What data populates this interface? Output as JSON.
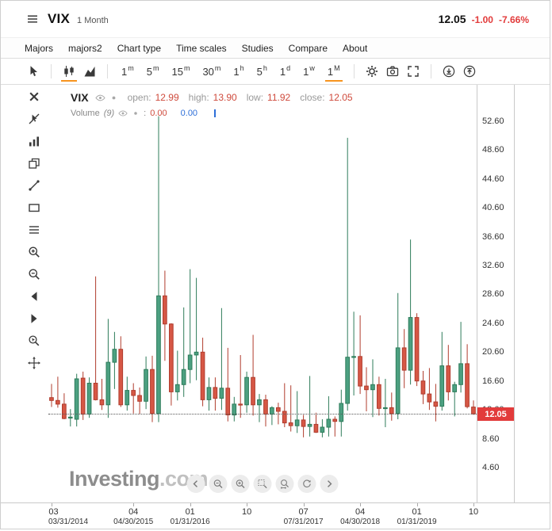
{
  "header": {
    "symbol": "VIX",
    "interval": "1 Month",
    "price": "12.05",
    "change": "-1.00",
    "change_pct": "-7.66%"
  },
  "menu": {
    "items": [
      "Majors",
      "majors2",
      "Chart type",
      "Time scales",
      "Studies",
      "Compare",
      "About"
    ]
  },
  "toolbar": {
    "pointer_tool": "pointer",
    "chart_types": [
      "candlestick-chart",
      "area-chart"
    ],
    "active_chart_type": "candlestick-chart",
    "timeframes": [
      "1m",
      "5m",
      "15m",
      "30m",
      "1h",
      "5h",
      "1d",
      "1w",
      "1M"
    ],
    "active_timeframe": "1M",
    "right_tools": [
      "settings",
      "screenshot",
      "fullscreen"
    ],
    "share_tools": [
      "download-chart",
      "upload-chart"
    ]
  },
  "side_tools": [
    "close",
    "cursor-disabled",
    "indicators",
    "clone-layers",
    "trendline",
    "rectangle-tool",
    "parallel-lines",
    "zoom-in",
    "zoom-out",
    "step-back",
    "step-forward",
    "zoom-select",
    "move-crosshair"
  ],
  "chart_nav": [
    "chevron-left",
    "zoom-out",
    "zoom-in",
    "zoom-area",
    "zoom-x",
    "zoom-reset",
    "chevron-right"
  ],
  "legend": {
    "symbol": "VIX",
    "open_label": "open:",
    "open_value": "12.99",
    "high_label": "high:",
    "high_value": "13.90",
    "low_label": "low:",
    "low_value": "11.92",
    "close_label": "close:",
    "close_value": "12.05",
    "volume_label": "Volume",
    "volume_param": "(9)",
    "volume_sep": ":",
    "volume_value": "0.00",
    "volume_value2": "0.00"
  },
  "watermark": {
    "brand": "Investing",
    "suffix": ".com"
  },
  "price_tag": {
    "value": "12.05"
  },
  "y_axis": {
    "ticks": [
      "52.60",
      "48.60",
      "44.60",
      "40.60",
      "36.60",
      "32.60",
      "28.60",
      "24.60",
      "20.60",
      "16.60",
      "12.60",
      "8.60",
      "4.60"
    ]
  },
  "x_axis": {
    "ticks": [
      {
        "label": "03",
        "date": "03/31/2014",
        "index": 0
      },
      {
        "label": "04",
        "date": "04/30/2015",
        "index": 13
      },
      {
        "label": "01",
        "date": "01/31/2016",
        "index": 22
      },
      {
        "label": "10",
        "date": "",
        "index": 31
      },
      {
        "label": "07",
        "date": "07/31/2017",
        "index": 40
      },
      {
        "label": "04",
        "date": "04/30/2018",
        "index": 49
      },
      {
        "label": "01",
        "date": "01/31/2019",
        "index": 58
      },
      {
        "label": "10",
        "date": "",
        "index": 67
      }
    ]
  },
  "colors": {
    "accent": "#f7941e",
    "negative": "#e23b3b",
    "up_fill": "#4ca081",
    "up_stroke": "#2e7c5a",
    "down_fill": "#d65745",
    "down_stroke": "#b03c2d",
    "value_red": "#cf4a3c",
    "value_blue": "#2e6fd8",
    "tag_bg": "#e23b3b",
    "price_line": "#555555"
  },
  "chart_data": {
    "type": "candlestick",
    "title": "VIX 1 Month",
    "x_unit": "month",
    "ylim": [
      4.6,
      56.6
    ],
    "y_ticks": [
      52.6,
      48.6,
      44.6,
      40.6,
      36.6,
      32.6,
      28.6,
      24.6,
      20.6,
      16.6,
      12.6,
      8.6,
      4.6
    ],
    "last_price": 12.05,
    "columns": [
      "month",
      "open",
      "high",
      "low",
      "close"
    ],
    "ohlc": [
      [
        "2014-03",
        14.3,
        16.2,
        13.0,
        13.9
      ],
      [
        "2014-04",
        13.9,
        17.2,
        12.9,
        13.4
      ],
      [
        "2014-05",
        13.4,
        14.9,
        11.3,
        11.4
      ],
      [
        "2014-06",
        11.5,
        12.7,
        10.3,
        11.6
      ],
      [
        "2014-07",
        11.3,
        17.6,
        10.3,
        16.9
      ],
      [
        "2014-08",
        17.0,
        17.9,
        11.2,
        12.0
      ],
      [
        "2014-09",
        12.0,
        17.1,
        11.5,
        16.3
      ],
      [
        "2014-10",
        16.3,
        31.1,
        13.9,
        14.0
      ],
      [
        "2014-11",
        14.0,
        16.9,
        12.6,
        13.3
      ],
      [
        "2014-12",
        13.3,
        25.2,
        11.5,
        19.2
      ],
      [
        "2015-01",
        19.2,
        23.4,
        15.5,
        21.0
      ],
      [
        "2015-02",
        21.0,
        22.8,
        13.0,
        13.3
      ],
      [
        "2015-03",
        13.3,
        17.2,
        12.5,
        15.3
      ],
      [
        "2015-04",
        15.3,
        16.3,
        12.1,
        14.6
      ],
      [
        "2015-05",
        14.6,
        15.7,
        12.0,
        13.8
      ],
      [
        "2015-06",
        13.8,
        20.0,
        12.7,
        18.2
      ],
      [
        "2015-07",
        18.2,
        20.1,
        10.9,
        12.1
      ],
      [
        "2015-08",
        12.1,
        53.3,
        10.9,
        28.4
      ],
      [
        "2015-09",
        28.4,
        31.9,
        19.4,
        24.5
      ],
      [
        "2015-10",
        24.5,
        24.6,
        13.2,
        15.1
      ],
      [
        "2015-11",
        15.1,
        20.8,
        13.9,
        16.1
      ],
      [
        "2015-12",
        16.1,
        26.8,
        14.4,
        18.2
      ],
      [
        "2016-01",
        18.2,
        32.1,
        16.3,
        20.2
      ],
      [
        "2016-02",
        20.2,
        30.9,
        16.7,
        20.6
      ],
      [
        "2016-03",
        20.6,
        22.6,
        13.1,
        14.0
      ],
      [
        "2016-04",
        14.0,
        17.1,
        12.5,
        15.7
      ],
      [
        "2016-05",
        15.7,
        17.1,
        12.5,
        14.2
      ],
      [
        "2016-06",
        14.2,
        26.7,
        12.6,
        15.6
      ],
      [
        "2016-07",
        15.6,
        21.2,
        11.0,
        11.9
      ],
      [
        "2016-08",
        11.9,
        14.4,
        11.0,
        13.4
      ],
      [
        "2016-09",
        13.4,
        20.2,
        11.5,
        13.3
      ],
      [
        "2016-10",
        13.3,
        17.9,
        12.2,
        17.1
      ],
      [
        "2016-11",
        17.1,
        23.0,
        11.8,
        13.3
      ],
      [
        "2016-12",
        13.3,
        14.8,
        10.9,
        14.0
      ],
      [
        "2017-01",
        14.0,
        14.7,
        10.3,
        12.0
      ],
      [
        "2017-02",
        12.0,
        13.1,
        10.5,
        12.9
      ],
      [
        "2017-03",
        12.9,
        13.6,
        10.6,
        12.4
      ],
      [
        "2017-04",
        12.4,
        16.3,
        10.2,
        10.8
      ],
      [
        "2017-05",
        10.8,
        16.0,
        9.6,
        10.4
      ],
      [
        "2017-06",
        10.4,
        15.2,
        9.4,
        11.2
      ],
      [
        "2017-07",
        11.2,
        11.9,
        8.8,
        10.3
      ],
      [
        "2017-08",
        10.3,
        17.3,
        8.9,
        10.6
      ],
      [
        "2017-09",
        10.6,
        12.2,
        9.4,
        9.5
      ],
      [
        "2017-10",
        9.5,
        11.3,
        8.8,
        10.2
      ],
      [
        "2017-11",
        10.2,
        14.5,
        8.9,
        11.3
      ],
      [
        "2017-12",
        11.3,
        11.7,
        8.9,
        11.0
      ],
      [
        "2018-01",
        11.0,
        15.4,
        8.9,
        13.5
      ],
      [
        "2018-02",
        13.5,
        50.3,
        12.5,
        19.9
      ],
      [
        "2018-03",
        19.9,
        26.2,
        14.6,
        20.0
      ],
      [
        "2018-04",
        20.0,
        25.7,
        14.8,
        15.9
      ],
      [
        "2018-05",
        15.9,
        18.5,
        12.4,
        15.4
      ],
      [
        "2018-06",
        15.4,
        19.6,
        11.6,
        16.1
      ],
      [
        "2018-07",
        16.1,
        17.2,
        11.8,
        12.8
      ],
      [
        "2018-08",
        12.8,
        16.9,
        10.2,
        12.9
      ],
      [
        "2018-09",
        12.9,
        15.0,
        11.1,
        12.1
      ],
      [
        "2018-10",
        12.1,
        28.8,
        11.3,
        21.2
      ],
      [
        "2018-11",
        21.2,
        23.8,
        15.6,
        18.1
      ],
      [
        "2018-12",
        18.1,
        36.2,
        16.1,
        25.4
      ],
      [
        "2019-01",
        25.4,
        26.0,
        15.9,
        16.6
      ],
      [
        "2019-02",
        16.6,
        18.0,
        13.4,
        14.8
      ],
      [
        "2019-03",
        14.8,
        18.4,
        12.6,
        13.7
      ],
      [
        "2019-04",
        13.7,
        16.2,
        11.0,
        13.1
      ],
      [
        "2019-05",
        13.1,
        23.4,
        12.5,
        18.7
      ],
      [
        "2019-06",
        18.7,
        21.6,
        13.9,
        15.1
      ],
      [
        "2019-07",
        15.1,
        16.5,
        11.7,
        16.1
      ],
      [
        "2019-08",
        16.1,
        24.8,
        15.0,
        19.0
      ],
      [
        "2019-09",
        19.0,
        21.7,
        12.8,
        13.05
      ],
      [
        "2019-10",
        12.99,
        13.9,
        11.92,
        12.05
      ]
    ]
  }
}
